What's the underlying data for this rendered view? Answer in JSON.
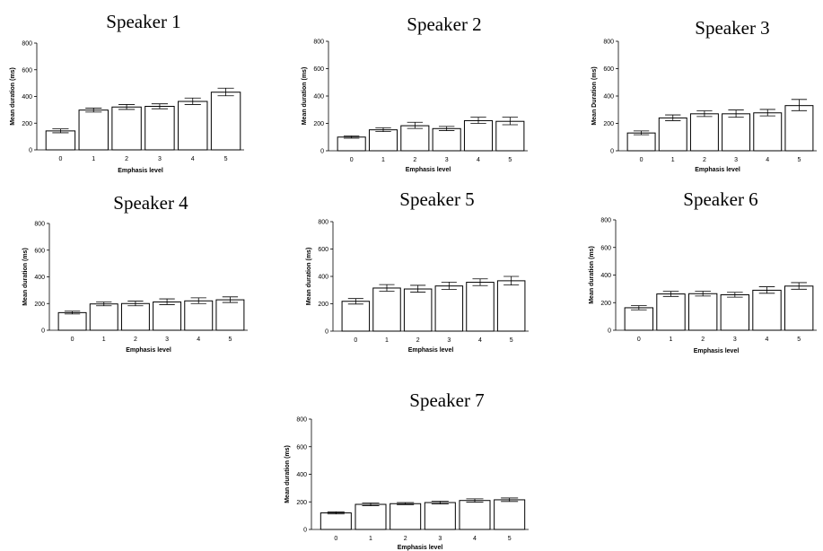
{
  "chart_data": [
    {
      "type": "bar",
      "title": "Speaker 1",
      "xlabel": "Emphasis level",
      "ylabel": "Mean duration (ms)",
      "categories": [
        "0",
        "1",
        "2",
        "3",
        "4",
        "5"
      ],
      "values": [
        142,
        298,
        321,
        326,
        363,
        432
      ],
      "error_low": [
        128,
        283,
        303,
        308,
        340,
        405
      ],
      "error_high": [
        157,
        313,
        340,
        345,
        388,
        462
      ],
      "ylim": [
        0,
        800
      ],
      "yticks": [
        0,
        200,
        400,
        600,
        800
      ],
      "grid": false,
      "legend": false
    },
    {
      "type": "bar",
      "title": "Speaker 2",
      "xlabel": "Emphasis level",
      "ylabel": "Mean duration (ms)",
      "categories": [
        "0",
        "1",
        "2",
        "3",
        "4",
        "5"
      ],
      "values": [
        100,
        153,
        183,
        162,
        220,
        215
      ],
      "error_low": [
        92,
        140,
        163,
        147,
        200,
        190
      ],
      "error_high": [
        108,
        168,
        208,
        178,
        245,
        245
      ],
      "ylim": [
        0,
        800
      ],
      "yticks": [
        0,
        200,
        400,
        600,
        800
      ],
      "grid": false,
      "legend": false
    },
    {
      "type": "bar",
      "title": "Speaker 3",
      "xlabel": "Emphasis level",
      "ylabel": "Mean Duration (ms)",
      "categories": [
        "0",
        "1",
        "2",
        "3",
        "4",
        "5"
      ],
      "values": [
        130,
        240,
        270,
        270,
        277,
        330
      ],
      "error_low": [
        117,
        220,
        250,
        245,
        255,
        293
      ],
      "error_high": [
        145,
        262,
        292,
        298,
        302,
        375
      ],
      "ylim": [
        0,
        800
      ],
      "yticks": [
        0,
        200,
        400,
        600,
        800
      ],
      "grid": false,
      "legend": false
    },
    {
      "type": "bar",
      "title": "Speaker 4",
      "xlabel": "Emphasis level",
      "ylabel": "Mean duration (ms)",
      "categories": [
        "0",
        "1",
        "2",
        "3",
        "4",
        "5"
      ],
      "values": [
        132,
        197,
        200,
        212,
        220,
        228
      ],
      "error_low": [
        122,
        183,
        183,
        192,
        200,
        208
      ],
      "error_high": [
        143,
        212,
        218,
        235,
        243,
        250
      ],
      "ylim": [
        0,
        800
      ],
      "yticks": [
        0,
        200,
        400,
        600,
        800
      ],
      "grid": false,
      "legend": false
    },
    {
      "type": "bar",
      "title": "Speaker 5",
      "xlabel": "Emphasis level",
      "ylabel": "Mean duration (ms)",
      "categories": [
        "0",
        "1",
        "2",
        "3",
        "4",
        "5"
      ],
      "values": [
        218,
        315,
        308,
        330,
        357,
        368
      ],
      "error_low": [
        198,
        292,
        285,
        305,
        333,
        337
      ],
      "error_high": [
        238,
        340,
        335,
        358,
        382,
        400
      ],
      "ylim": [
        0,
        800
      ],
      "yticks": [
        0,
        200,
        400,
        600,
        800
      ],
      "grid": false,
      "legend": false
    },
    {
      "type": "bar",
      "title": "Speaker 6",
      "xlabel": "Emphasis level",
      "ylabel": "Mean duration (ms)",
      "categories": [
        "0",
        "1",
        "2",
        "3",
        "4",
        "5"
      ],
      "values": [
        163,
        263,
        265,
        257,
        290,
        320
      ],
      "error_low": [
        148,
        245,
        248,
        240,
        268,
        297
      ],
      "error_high": [
        178,
        282,
        283,
        275,
        315,
        345
      ],
      "ylim": [
        0,
        800
      ],
      "yticks": [
        0,
        200,
        400,
        600,
        800
      ],
      "grid": false,
      "legend": false
    },
    {
      "type": "bar",
      "title": "Speaker 7",
      "xlabel": "Emphasis level",
      "ylabel": "Mean duration (ms)",
      "categories": [
        "0",
        "1",
        "2",
        "3",
        "4",
        "5"
      ],
      "values": [
        120,
        182,
        187,
        195,
        210,
        215
      ],
      "error_low": [
        112,
        172,
        180,
        185,
        198,
        203
      ],
      "error_high": [
        128,
        192,
        195,
        205,
        222,
        228
      ],
      "ylim": [
        0,
        800
      ],
      "yticks": [
        0,
        200,
        400,
        600,
        800
      ],
      "grid": false,
      "legend": false
    }
  ]
}
